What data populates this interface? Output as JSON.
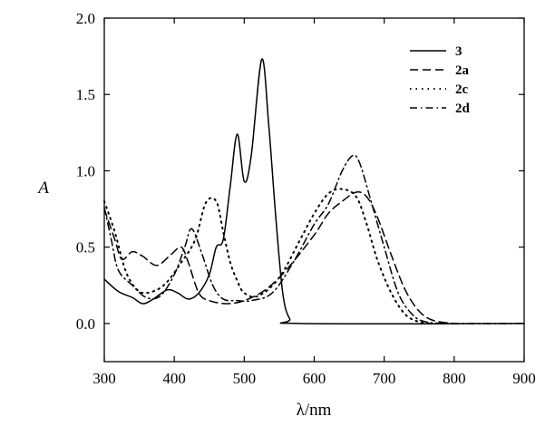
{
  "chart_data": {
    "type": "line",
    "title": "",
    "xlabel": "λ/nm",
    "ylabel": "A",
    "xlim": [
      300,
      900
    ],
    "ylim": [
      -0.25,
      2.0
    ],
    "xticks": [
      "300",
      "400",
      "500",
      "600",
      "700",
      "800",
      "900"
    ],
    "yticks": [
      "0.0",
      "0.5",
      "1.0",
      "1.5",
      "2.0"
    ],
    "grid": false,
    "legend_position": "top-right",
    "series": [
      {
        "name": "3",
        "style": "solid",
        "x": [
          300,
          320,
          340,
          355,
          370,
          390,
          405,
          420,
          435,
          450,
          460,
          470,
          480,
          490,
          500,
          510,
          525,
          535,
          545,
          555,
          565,
          580,
          900
        ],
        "y": [
          0.29,
          0.21,
          0.17,
          0.13,
          0.16,
          0.22,
          0.2,
          0.16,
          0.2,
          0.32,
          0.5,
          0.55,
          0.9,
          1.24,
          0.93,
          1.1,
          1.73,
          1.3,
          0.7,
          0.2,
          0.03,
          0.0,
          0.0
        ]
      },
      {
        "name": "2a",
        "style": "dashed",
        "x": [
          300,
          315,
          325,
          340,
          355,
          375,
          395,
          410,
          420,
          435,
          450,
          475,
          500,
          530,
          560,
          600,
          620,
          640,
          660,
          675,
          690,
          710,
          730,
          750,
          770,
          800
        ],
        "y": [
          0.75,
          0.55,
          0.42,
          0.47,
          0.44,
          0.38,
          0.45,
          0.5,
          0.4,
          0.2,
          0.15,
          0.13,
          0.15,
          0.22,
          0.35,
          0.58,
          0.72,
          0.8,
          0.86,
          0.83,
          0.7,
          0.45,
          0.22,
          0.08,
          0.02,
          0.0
        ]
      },
      {
        "name": "2c",
        "style": "dotted",
        "x": [
          300,
          315,
          330,
          345,
          360,
          385,
          410,
          430,
          445,
          460,
          470,
          480,
          490,
          500,
          520,
          550,
          580,
          600,
          620,
          640,
          660,
          675,
          690,
          710,
          730,
          750,
          770
        ],
        "y": [
          0.8,
          0.6,
          0.35,
          0.23,
          0.2,
          0.25,
          0.4,
          0.55,
          0.79,
          0.8,
          0.6,
          0.4,
          0.28,
          0.2,
          0.18,
          0.3,
          0.55,
          0.72,
          0.85,
          0.88,
          0.83,
          0.65,
          0.42,
          0.2,
          0.06,
          0.01,
          0.0
        ]
      },
      {
        "name": "2d",
        "style": "dashdot",
        "x": [
          300,
          310,
          320,
          340,
          360,
          380,
          400,
          415,
          425,
          440,
          455,
          470,
          490,
          510,
          540,
          570,
          600,
          620,
          640,
          655,
          665,
          680,
          700,
          720,
          740,
          760,
          800,
          900
        ],
        "y": [
          0.76,
          0.55,
          0.35,
          0.25,
          0.17,
          0.18,
          0.32,
          0.5,
          0.62,
          0.45,
          0.25,
          0.16,
          0.15,
          0.15,
          0.2,
          0.4,
          0.65,
          0.78,
          1.0,
          1.1,
          1.05,
          0.82,
          0.5,
          0.2,
          0.06,
          0.01,
          0.0,
          0.0
        ]
      }
    ]
  }
}
